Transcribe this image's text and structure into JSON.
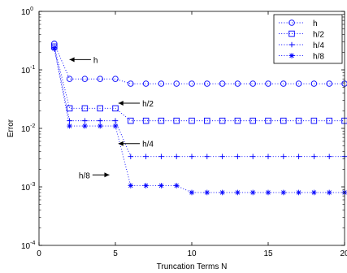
{
  "chart_data": {
    "type": "line",
    "title": "",
    "xlabel": "Truncation Terms N",
    "ylabel": "Error",
    "xlim": [
      0,
      20
    ],
    "ylim_log10": [
      -4,
      0
    ],
    "yscale": "log",
    "grid": false,
    "legend_position": "top-right",
    "x_ticks": [
      0,
      5,
      10,
      15,
      20
    ],
    "y_ticks": [
      {
        "exp": 0,
        "label_base": "10",
        "label_exp": "0"
      },
      {
        "exp": -1,
        "label_base": "10",
        "label_exp": "-1"
      },
      {
        "exp": -2,
        "label_base": "10",
        "label_exp": "-2"
      },
      {
        "exp": -3,
        "label_base": "10",
        "label_exp": "-3"
      },
      {
        "exp": -4,
        "label_base": "10",
        "label_exp": "-4"
      }
    ],
    "x": [
      1,
      2,
      3,
      4,
      5,
      6,
      7,
      8,
      9,
      10,
      11,
      12,
      13,
      14,
      15,
      16,
      17,
      18,
      19,
      20
    ],
    "series": [
      {
        "name": "h",
        "marker": "circle",
        "values": [
          0.28,
          0.07,
          0.07,
          0.07,
          0.07,
          0.058,
          0.058,
          0.058,
          0.058,
          0.058,
          0.058,
          0.058,
          0.058,
          0.058,
          0.058,
          0.058,
          0.058,
          0.058,
          0.058,
          0.058
        ]
      },
      {
        "name": "h/2",
        "marker": "square",
        "values": [
          0.25,
          0.022,
          0.022,
          0.022,
          0.022,
          0.0135,
          0.0135,
          0.0135,
          0.0135,
          0.0135,
          0.0135,
          0.0135,
          0.0135,
          0.0135,
          0.0135,
          0.0135,
          0.0135,
          0.0135,
          0.0135,
          0.0135
        ]
      },
      {
        "name": "h/4",
        "marker": "plus",
        "values": [
          0.24,
          0.0135,
          0.0135,
          0.0135,
          0.0135,
          0.0033,
          0.0033,
          0.0033,
          0.0033,
          0.0033,
          0.0033,
          0.0033,
          0.0033,
          0.0033,
          0.0033,
          0.0033,
          0.0033,
          0.0033,
          0.0033,
          0.0033
        ]
      },
      {
        "name": "h/8",
        "marker": "asterisk",
        "values": [
          0.23,
          0.011,
          0.011,
          0.011,
          0.011,
          0.00105,
          0.00105,
          0.00105,
          0.00105,
          0.0008,
          0.0008,
          0.0008,
          0.0008,
          0.0008,
          0.0008,
          0.0008,
          0.0008,
          0.0008,
          0.0008,
          0.0008
        ]
      }
    ],
    "annotations": [
      {
        "text": "h",
        "arrow_to_x": 2.0,
        "arrow_from_x": 3.4,
        "at_y": 0.15,
        "text_side": "right"
      },
      {
        "text": "h/2",
        "arrow_to_x": 5.2,
        "arrow_from_x": 6.6,
        "at_y": 0.027,
        "text_side": "right"
      },
      {
        "text": "h/4",
        "arrow_to_x": 5.2,
        "arrow_from_x": 6.6,
        "at_y": 0.0055,
        "text_side": "right"
      },
      {
        "text": "h/8",
        "arrow_to_x": 4.6,
        "arrow_from_x": 3.5,
        "at_y": 0.0016,
        "text_side": "left"
      }
    ],
    "colors": {
      "series": "#0000ff",
      "axes": "#000000",
      "background": "#ffffff"
    }
  }
}
